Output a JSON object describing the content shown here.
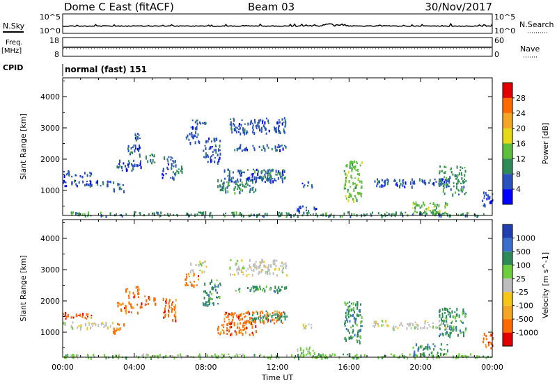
{
  "header": {
    "station": "Dome C East (fitACF)",
    "beam": "Beam 03",
    "date": "30/Nov/2017"
  },
  "aux_panels": {
    "nsky": {
      "label": "N.Sky",
      "left_ticks": [
        "10^5",
        "10^0"
      ],
      "right_label": "N.Search",
      "right_ticks": [
        "10^5",
        "10^0"
      ]
    },
    "freq": {
      "label_line1": "Freq.",
      "label_line2": "[MHz]",
      "left_ticks": [
        "18",
        "8"
      ],
      "right_label": "Nave",
      "right_ticks": [
        "60",
        "0"
      ]
    },
    "cpid": {
      "label": "CPID",
      "value": "normal (fast) 151"
    }
  },
  "chart_data": [
    {
      "type": "heatmap",
      "name": "power",
      "ylabel": "Slant Range [km]",
      "xlim": [
        0,
        24
      ],
      "ylim": [
        200,
        4600
      ],
      "yticks": [
        1000,
        2000,
        3000,
        4000
      ],
      "colorbar": {
        "label": "Power [dB]",
        "ticks": [
          "4",
          "8",
          "12",
          "16",
          "20",
          "24",
          "28"
        ],
        "colors": [
          "#0000ff",
          "#2a52be",
          "#2e8b57",
          "#5fbf3f",
          "#e8d81a",
          "#f5a623",
          "#ff6a00",
          "#e00000"
        ]
      },
      "blobs": [
        {
          "t0": 0.0,
          "t1": 2.8,
          "r0": 1150,
          "r1": 1350,
          "c": 1
        },
        {
          "t0": 0.0,
          "t1": 1.6,
          "r0": 1450,
          "r1": 1650,
          "c": 1
        },
        {
          "t0": 2.8,
          "t1": 3.4,
          "r0": 1000,
          "r1": 1300,
          "c": 1
        },
        {
          "t0": 3.0,
          "t1": 4.4,
          "r0": 1650,
          "r1": 2000,
          "c": 1
        },
        {
          "t0": 3.5,
          "t1": 4.3,
          "r0": 2100,
          "r1": 2500,
          "c": 1
        },
        {
          "t0": 4.0,
          "t1": 4.3,
          "r0": 2650,
          "r1": 2850,
          "c": 1
        },
        {
          "t0": 4.5,
          "t1": 5.2,
          "r0": 1900,
          "r1": 2200,
          "c": 2
        },
        {
          "t0": 5.5,
          "t1": 6.3,
          "r0": 1400,
          "r1": 2100,
          "c": 1
        },
        {
          "t0": 6.3,
          "t1": 6.7,
          "r0": 1600,
          "r1": 1800,
          "c": 2
        },
        {
          "t0": 6.8,
          "t1": 7.6,
          "r0": 2500,
          "r1": 2900,
          "c": 1
        },
        {
          "t0": 7.1,
          "t1": 8.0,
          "r0": 2950,
          "r1": 3300,
          "c": 1
        },
        {
          "t0": 7.8,
          "t1": 8.8,
          "r0": 1900,
          "r1": 2700,
          "c": 1
        },
        {
          "t0": 8.6,
          "t1": 10.8,
          "r0": 950,
          "r1": 1400,
          "c": 2
        },
        {
          "t0": 9.0,
          "t1": 12.4,
          "r0": 1300,
          "r1": 1700,
          "c": 1
        },
        {
          "t0": 9.5,
          "t1": 12.5,
          "r0": 2300,
          "r1": 2500,
          "c": 1
        },
        {
          "t0": 9.3,
          "t1": 12.5,
          "r0": 2850,
          "r1": 3350,
          "c": 1
        },
        {
          "t0": 10.5,
          "t1": 12.5,
          "r0": 1400,
          "r1": 1700,
          "c": 2
        },
        {
          "t0": 13.3,
          "t1": 14.0,
          "r0": 1150,
          "r1": 1300,
          "c": 1
        },
        {
          "t0": 13.0,
          "t1": 14.2,
          "r0": 350,
          "r1": 550,
          "c": 1
        },
        {
          "t0": 15.7,
          "t1": 16.7,
          "r0": 700,
          "r1": 2000,
          "c": 3
        },
        {
          "t0": 17.3,
          "t1": 21.5,
          "r0": 1150,
          "r1": 1400,
          "c": 1
        },
        {
          "t0": 19.5,
          "t1": 21.5,
          "r0": 250,
          "r1": 650,
          "c": 3
        },
        {
          "t0": 21.0,
          "t1": 22.5,
          "r0": 900,
          "r1": 1800,
          "c": 2
        },
        {
          "t0": 23.4,
          "t1": 24.0,
          "r0": 500,
          "r1": 1000,
          "c": 1
        },
        {
          "t0": 0.0,
          "t1": 24.0,
          "r0": 200,
          "r1": 330,
          "c": 2
        }
      ]
    },
    {
      "type": "heatmap",
      "name": "velocity",
      "ylabel": "Slant Range [km]",
      "xlabel": "Time UT",
      "xlim": [
        0,
        24
      ],
      "ylim": [
        200,
        4600
      ],
      "yticks": [
        1000,
        2000,
        3000,
        4000
      ],
      "xticks": [
        "00:00",
        "04:00",
        "08:00",
        "12:00",
        "16:00",
        "20:00",
        "00:00"
      ],
      "colorbar": {
        "label": "Velocity [m s^-1]",
        "ticks": [
          "1000",
          "500",
          "100",
          "25",
          "-25",
          "-100",
          "-500",
          "-1000"
        ],
        "colors": [
          "#1f3fb3",
          "#3a6fd0",
          "#2e8b57",
          "#6dcf3a",
          "#bebebe",
          "#f5c518",
          "#f5a623",
          "#ff6a00",
          "#e00000"
        ]
      },
      "blobs": [
        {
          "t0": 0.0,
          "t1": 2.8,
          "r0": 1150,
          "r1": 1350,
          "c": 4
        },
        {
          "t0": 0.0,
          "t1": 1.6,
          "r0": 1450,
          "r1": 1650,
          "c": 7
        },
        {
          "t0": 2.8,
          "t1": 3.4,
          "r0": 1000,
          "r1": 1300,
          "c": 7
        },
        {
          "t0": 3.0,
          "t1": 4.4,
          "r0": 1650,
          "r1": 2000,
          "c": 7
        },
        {
          "t0": 3.5,
          "t1": 4.3,
          "r0": 2100,
          "r1": 2500,
          "c": 7
        },
        {
          "t0": 4.5,
          "t1": 5.2,
          "r0": 1900,
          "r1": 2200,
          "c": 7
        },
        {
          "t0": 5.5,
          "t1": 6.3,
          "r0": 1400,
          "r1": 2100,
          "c": 7
        },
        {
          "t0": 6.8,
          "t1": 7.6,
          "r0": 2500,
          "r1": 2900,
          "c": 7
        },
        {
          "t0": 7.1,
          "t1": 8.0,
          "r0": 2950,
          "r1": 3300,
          "c": 4
        },
        {
          "t0": 7.8,
          "t1": 8.8,
          "r0": 1900,
          "r1": 2700,
          "c": 2
        },
        {
          "t0": 8.6,
          "t1": 10.8,
          "r0": 950,
          "r1": 1400,
          "c": 7
        },
        {
          "t0": 9.0,
          "t1": 12.4,
          "r0": 1300,
          "r1": 1700,
          "c": 7
        },
        {
          "t0": 9.5,
          "t1": 12.5,
          "r0": 2300,
          "r1": 2500,
          "c": 2
        },
        {
          "t0": 9.3,
          "t1": 12.5,
          "r0": 2850,
          "r1": 3350,
          "c": 4
        },
        {
          "t0": 10.5,
          "t1": 12.5,
          "r0": 1400,
          "r1": 1700,
          "c": 2
        },
        {
          "t0": 13.3,
          "t1": 14.0,
          "r0": 1150,
          "r1": 1300,
          "c": 4
        },
        {
          "t0": 13.0,
          "t1": 14.2,
          "r0": 350,
          "r1": 550,
          "c": 3
        },
        {
          "t0": 15.7,
          "t1": 16.7,
          "r0": 700,
          "r1": 2000,
          "c": 2
        },
        {
          "t0": 17.3,
          "t1": 21.5,
          "r0": 1150,
          "r1": 1400,
          "c": 4
        },
        {
          "t0": 19.5,
          "t1": 21.5,
          "r0": 250,
          "r1": 650,
          "c": 2
        },
        {
          "t0": 21.0,
          "t1": 22.5,
          "r0": 900,
          "r1": 1800,
          "c": 2
        },
        {
          "t0": 23.4,
          "t1": 24.0,
          "r0": 500,
          "r1": 1000,
          "c": 7
        },
        {
          "t0": 0.0,
          "t1": 24.0,
          "r0": 200,
          "r1": 330,
          "c": 3
        }
      ]
    }
  ]
}
